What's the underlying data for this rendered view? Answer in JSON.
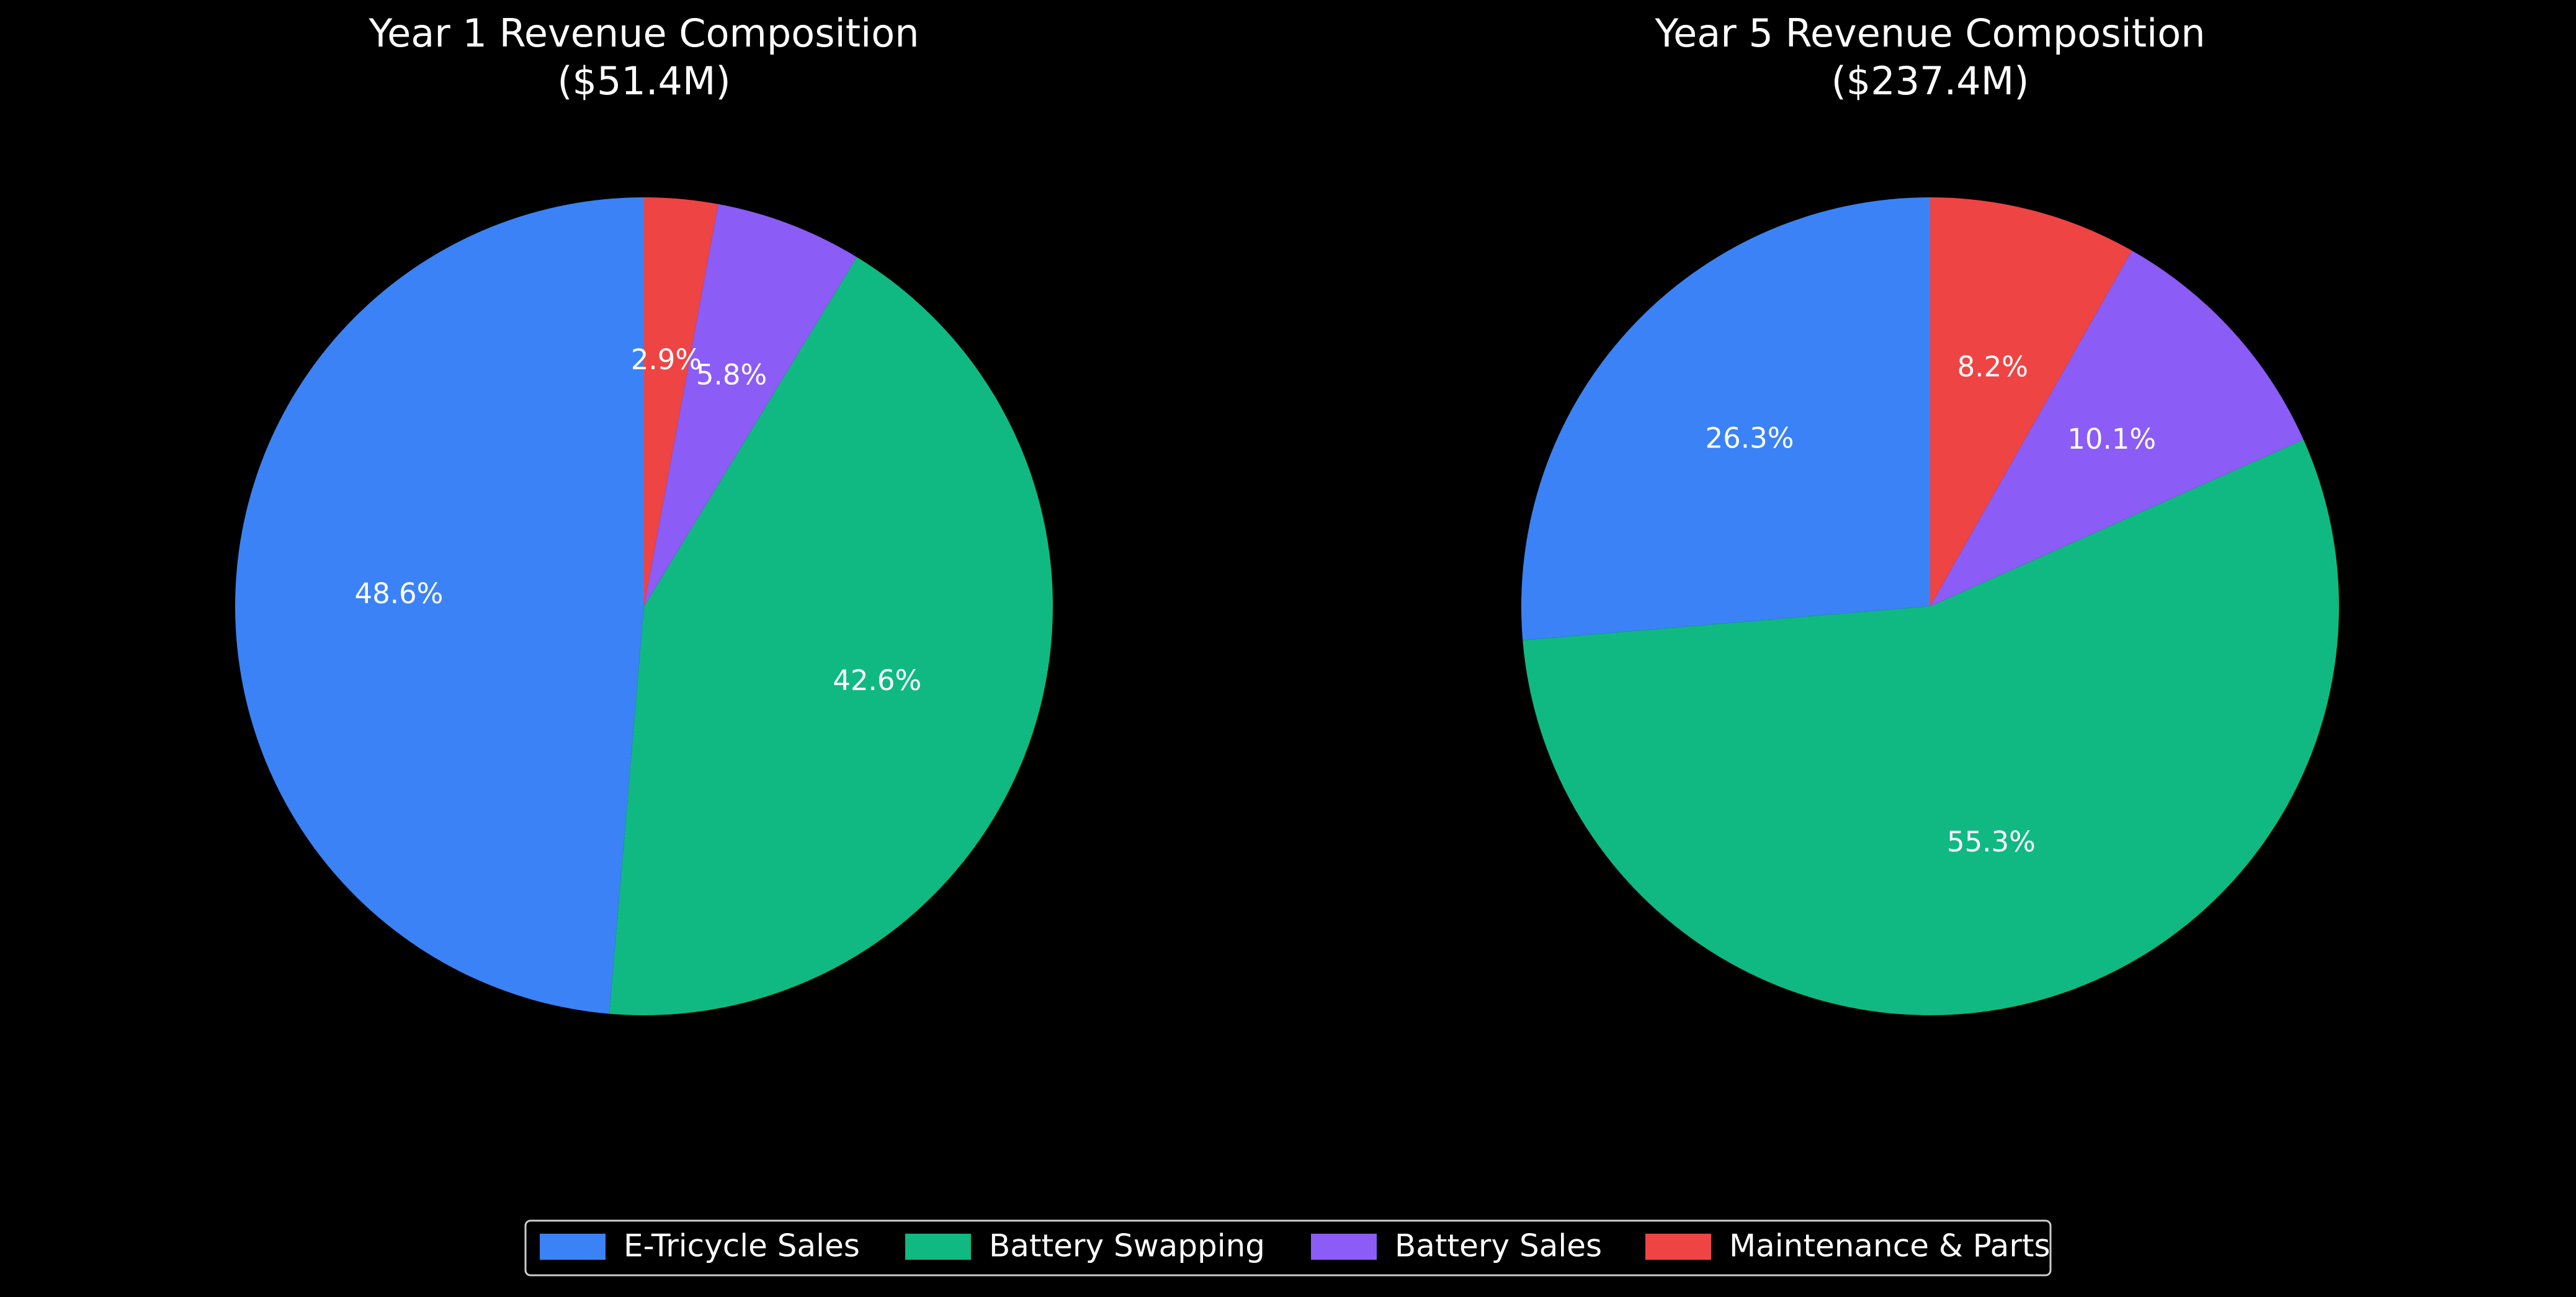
{
  "chart_data": [
    {
      "type": "pie",
      "title": "Year 1 Revenue Composition",
      "subtitle": "($51.4M)",
      "categories": [
        "E-Tricycle Sales",
        "Battery Swapping",
        "Battery Sales",
        "Maintenance & Parts"
      ],
      "values": [
        48.6,
        42.6,
        5.8,
        2.9
      ],
      "value_labels": [
        "48.6%",
        "42.6%",
        "5.8%",
        "2.9%"
      ],
      "colors": [
        "#3b82f6",
        "#10b981",
        "#8b5cf6",
        "#ef4444"
      ]
    },
    {
      "type": "pie",
      "title": "Year 5 Revenue Composition",
      "subtitle": "($237.4M)",
      "categories": [
        "E-Tricycle Sales",
        "Battery Swapping",
        "Battery Sales",
        "Maintenance & Parts"
      ],
      "values": [
        26.3,
        55.3,
        10.1,
        8.2
      ],
      "value_labels": [
        "26.3%",
        "55.3%",
        "10.1%",
        "8.2%"
      ],
      "colors": [
        "#3b82f6",
        "#10b981",
        "#8b5cf6",
        "#ef4444"
      ]
    }
  ]
}
